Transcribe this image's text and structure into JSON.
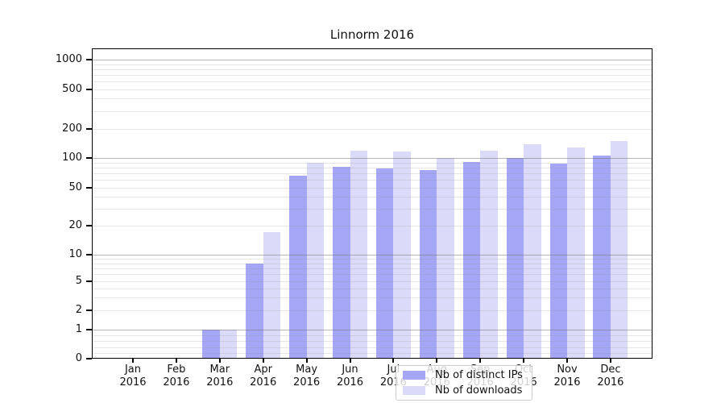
{
  "title": "Linnorm 2016",
  "chart_data": {
    "type": "bar",
    "title": "Linnorm 2016",
    "categories": [
      "Jan 2016",
      "Feb 2016",
      "Mar 2016",
      "Apr 2016",
      "May 2016",
      "Jun 2016",
      "Jul 2016",
      "Aug 2016",
      "Sep 2016",
      "Oct 2016",
      "Nov 2016",
      "Dec 2016"
    ],
    "series": [
      {
        "name": "Nb of distinct IPs",
        "color": "#a6a6f6",
        "values": [
          0,
          0,
          1,
          8,
          66,
          82,
          78,
          75,
          91,
          100,
          88,
          106
        ]
      },
      {
        "name": "Nb of downloads",
        "color": "#dbdbf9",
        "values": [
          0,
          0,
          1,
          17,
          89,
          118,
          116,
          100,
          118,
          138,
          128,
          149
        ]
      }
    ],
    "xlabel": "",
    "ylabel": "",
    "yscale": "symlog",
    "yticks": [
      0,
      1,
      2,
      5,
      10,
      20,
      50,
      100,
      200,
      500,
      1000
    ],
    "ylim": [
      0,
      1200
    ],
    "grid": true,
    "legend_position": "lower center"
  },
  "legend": {
    "items": [
      "Nb of distinct IPs",
      "Nb of downloads"
    ]
  }
}
